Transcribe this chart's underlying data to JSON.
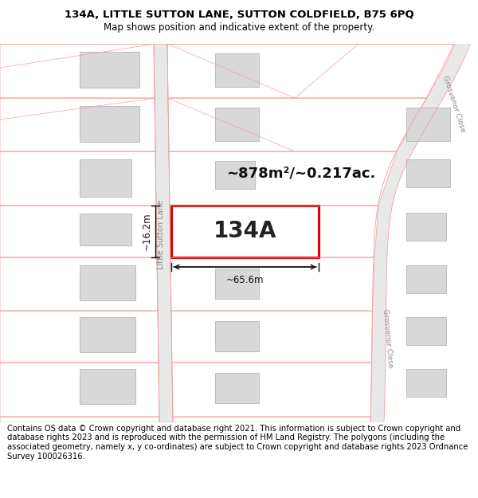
{
  "title_line1": "134A, LITTLE SUTTON LANE, SUTTON COLDFIELD, B75 6PQ",
  "title_line2": "Map shows position and indicative extent of the property.",
  "footer_text": "Contains OS data © Crown copyright and database right 2021. This information is subject to Crown copyright and database rights 2023 and is reproduced with the permission of HM Land Registry. The polygons (including the associated geometry, namely x, y co-ordinates) are subject to Crown copyright and database rights 2023 Ordnance Survey 100026316.",
  "area_label": "~878m²/~0.217ac.",
  "property_label": "134A",
  "dim_width": "~65.6m",
  "dim_height": "~16.2m",
  "map_bg": "#ffffff",
  "plot_bg": "#ffffff",
  "road_fill_color": "#e8e8e8",
  "road_line_color": "#f0a0a0",
  "building_fill": "#d8d8d8",
  "building_stroke": "#aaaaaa",
  "plot_fill": "#ffffff",
  "plot_stroke": "#f0a0a0",
  "highlight_stroke": "#dd0000",
  "dim_color": "#111111",
  "text_color": "#333333",
  "road_label_color": "#888888",
  "title_fontsize": 9.5,
  "subtitle_fontsize": 8.5,
  "footer_fontsize": 7.2,
  "label_fontsize": 7
}
